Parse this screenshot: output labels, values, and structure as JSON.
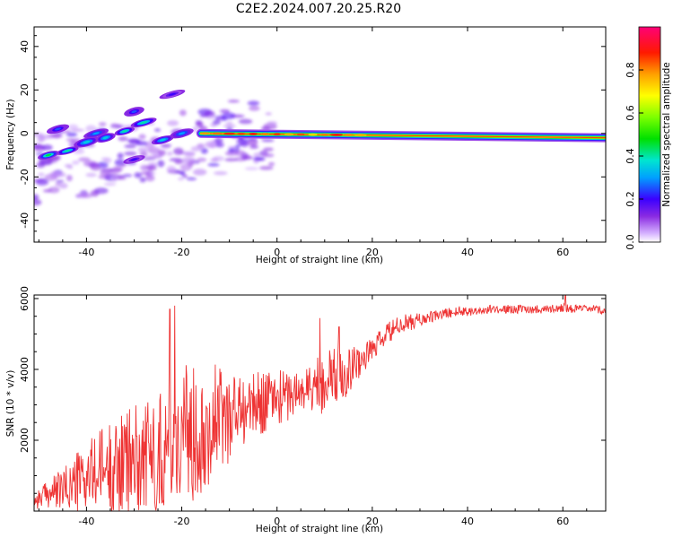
{
  "title": "C2E2.2024.007.20.25.R20",
  "chart_data": [
    {
      "type": "heatmap",
      "xlabel": "Height of straight line (km)",
      "ylabel": "Frequency (Hz)",
      "xlim": [
        -51,
        69
      ],
      "ylim": [
        -50,
        49
      ],
      "xticks": [
        -40,
        -20,
        0,
        20,
        40,
        60
      ],
      "yticks": [
        -40,
        -20,
        0,
        20,
        40
      ],
      "grid": false,
      "colorbar": {
        "label": "Normalized spectral amplitude",
        "range": [
          0,
          1
        ],
        "ticks": [
          "0.0",
          "0.2",
          "0.4",
          "0.6",
          "0.8"
        ],
        "tick_values": [
          0.0,
          0.2,
          0.4,
          0.6,
          0.8
        ]
      },
      "main_line": {
        "x_start": -16,
        "x_end": 69,
        "freq_start": 0,
        "freq_end": -2,
        "note_amplitude": 0.85
      },
      "blobs": [
        {
          "x": -48,
          "f": -10,
          "a": 0.45
        },
        {
          "x": -44,
          "f": -8,
          "a": 0.4
        },
        {
          "x": -40,
          "f": -4,
          "a": 0.35
        },
        {
          "x": -36,
          "f": -2,
          "a": 0.35
        },
        {
          "x": -32,
          "f": 1,
          "a": 0.4
        },
        {
          "x": -28,
          "f": 5,
          "a": 0.4
        },
        {
          "x": -24,
          "f": -3,
          "a": 0.35
        },
        {
          "x": -20,
          "f": 0,
          "a": 0.3
        },
        {
          "x": -46,
          "f": 2,
          "a": 0.25
        },
        {
          "x": -38,
          "f": 0,
          "a": 0.3
        },
        {
          "x": -30,
          "f": 10,
          "a": 0.25
        },
        {
          "x": -22,
          "f": 18,
          "a": 0.2
        },
        {
          "x": -30,
          "f": -12,
          "a": 0.2
        }
      ]
    },
    {
      "type": "line",
      "xlabel": "Height of straight line (km)",
      "ylabel": "SNR (10 * v/v)",
      "xlim": [
        -51,
        69
      ],
      "ylim": [
        0,
        6100
      ],
      "xticks": [
        -40,
        -20,
        0,
        20,
        40,
        60
      ],
      "yticks": [
        2000,
        4000,
        6000
      ],
      "grid": false,
      "series": [
        {
          "color": "#ee3333",
          "x": [
            -51,
            -48,
            -45,
            -42,
            -39,
            -36,
            -33,
            -30,
            -27,
            -24,
            -21,
            -18,
            -15,
            -12,
            -9,
            -6,
            -3,
            0,
            3,
            6,
            9,
            12,
            15,
            18,
            21,
            24,
            27,
            30,
            33,
            36,
            39,
            42,
            45,
            48,
            51,
            54,
            57,
            60,
            63,
            66,
            69
          ],
          "y": [
            300,
            500,
            600,
            800,
            1000,
            1200,
            1300,
            1500,
            1600,
            1700,
            2000,
            2200,
            2400,
            2600,
            2800,
            2900,
            3100,
            3200,
            3300,
            3400,
            3600,
            3800,
            4000,
            4300,
            4700,
            5100,
            5300,
            5400,
            5500,
            5600,
            5650,
            5650,
            5700,
            5700,
            5700,
            5700,
            5700,
            5750,
            5700,
            5700,
            5650
          ],
          "spread": [
            250,
            400,
            600,
            900,
            1100,
            1300,
            1400,
            1500,
            1600,
            1800,
            2000,
            2000,
            1800,
            1600,
            1200,
            900,
            900,
            800,
            700,
            700,
            900,
            900,
            700,
            400,
            350,
            300,
            250,
            200,
            150,
            150,
            150,
            120,
            120,
            120,
            120,
            120,
            120,
            120,
            120,
            120,
            120
          ],
          "peaks": [
            {
              "x": -21.5,
              "y": 5800
            },
            {
              "x": -22.5,
              "y": 5700
            },
            {
              "x": 9,
              "y": 5450
            },
            {
              "x": 13,
              "y": 5200
            },
            {
              "x": 60.5,
              "y": 6100
            }
          ]
        }
      ]
    }
  ]
}
